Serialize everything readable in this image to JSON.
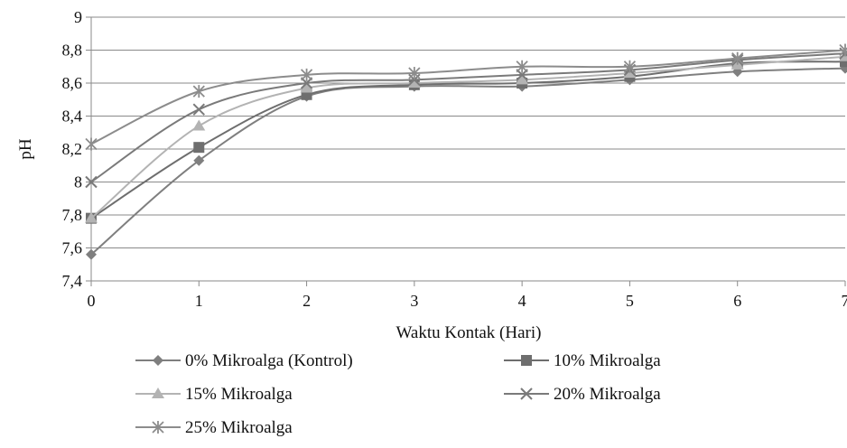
{
  "chart_data": {
    "type": "line",
    "title": "",
    "xlabel": "Waktu Kontak (Hari)",
    "ylabel": "pH",
    "x": [
      0,
      1,
      2,
      3,
      4,
      5,
      6,
      7
    ],
    "x_tick_labels": [
      "0",
      "1",
      "2",
      "3",
      "4",
      "5",
      "6",
      "7"
    ],
    "ylim": [
      7.4,
      9.0
    ],
    "y_ticks": [
      7.4,
      7.6,
      7.8,
      8.0,
      8.2,
      8.4,
      8.6,
      8.8,
      9.0
    ],
    "y_tick_labels": [
      "7,4",
      "7,6",
      "7,8",
      "8",
      "8,2",
      "8,4",
      "8,6",
      "8,8",
      "9"
    ],
    "grid": "horizontal",
    "legend_position": "bottom",
    "series": [
      {
        "name": "0% Mikroalga (Kontrol)",
        "marker": "diamond",
        "color": "#7f7f7f",
        "values": [
          7.56,
          8.13,
          8.52,
          8.58,
          8.58,
          8.62,
          8.67,
          8.69
        ]
      },
      {
        "name": "10% Mikroalga",
        "marker": "square",
        "color": "#6e6e6e",
        "values": [
          7.78,
          8.21,
          8.53,
          8.59,
          8.6,
          8.64,
          8.72,
          8.73
        ]
      },
      {
        "name": "15% Mikroalga",
        "marker": "triangle",
        "color": "#b3b3b3",
        "values": [
          7.78,
          8.34,
          8.57,
          8.6,
          8.62,
          8.66,
          8.71,
          8.76
        ]
      },
      {
        "name": "20% Mikroalga",
        "marker": "x",
        "color": "#7a7a7a",
        "values": [
          8.0,
          8.44,
          8.6,
          8.62,
          8.65,
          8.68,
          8.74,
          8.78
        ]
      },
      {
        "name": "25% Mikroalga",
        "marker": "star",
        "color": "#8c8c8c",
        "values": [
          8.23,
          8.55,
          8.65,
          8.66,
          8.7,
          8.7,
          8.75,
          8.8
        ]
      }
    ]
  }
}
